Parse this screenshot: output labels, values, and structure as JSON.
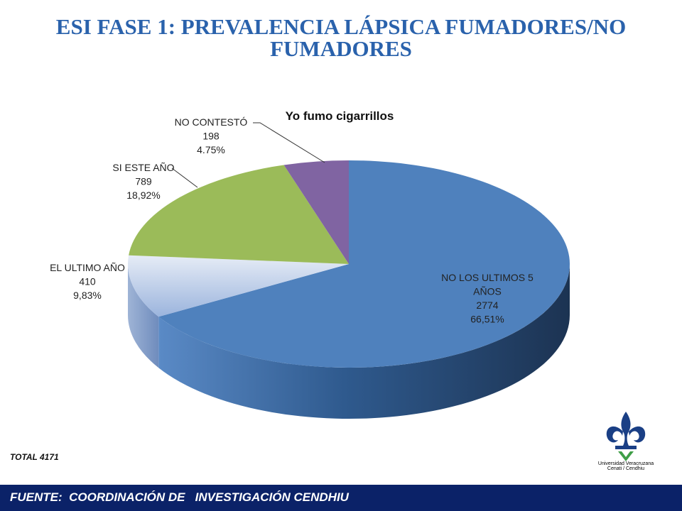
{
  "slide": {
    "title_line1": "ESI FASE 1: PREVALENCIA LÁPSICA FUMADORES/NO",
    "title_line2": "FUMADORES",
    "total": "TOTAL 4171",
    "footer": "FUENTE:  COORDINACIÓN DE   INVESTIGACIÓN CENDHIU",
    "logo": {
      "name": "Universidad Veracruzana",
      "sub": "Cenati / Cendhiu",
      "icon": "fleur-de-lis-icon"
    }
  },
  "chart_data": {
    "type": "pie",
    "title": "Yo fumo cigarrillos",
    "style": "3d",
    "slices": [
      {
        "label_lines": [
          "NO LOS ULTIMOS  5",
          "AÑOS"
        ],
        "value": 2774,
        "value_label": "2774",
        "pct_label": "66,51%",
        "color": "#4f81bd"
      },
      {
        "label_lines": [
          "EL ULTIMO AÑO"
        ],
        "value": 410,
        "value_label": "410",
        "pct_label": "9,83%",
        "color": "#d0dcf0"
      },
      {
        "label_lines": [
          "SI ESTE AÑO"
        ],
        "value": 789,
        "value_label": "789",
        "pct_label": "18,92%",
        "color": "#9bbb59"
      },
      {
        "label_lines": [
          "NO CONTESTÓ"
        ],
        "value": 198,
        "value_label": "198",
        "pct_label": "4.75%",
        "color": "#8064a2"
      }
    ]
  }
}
